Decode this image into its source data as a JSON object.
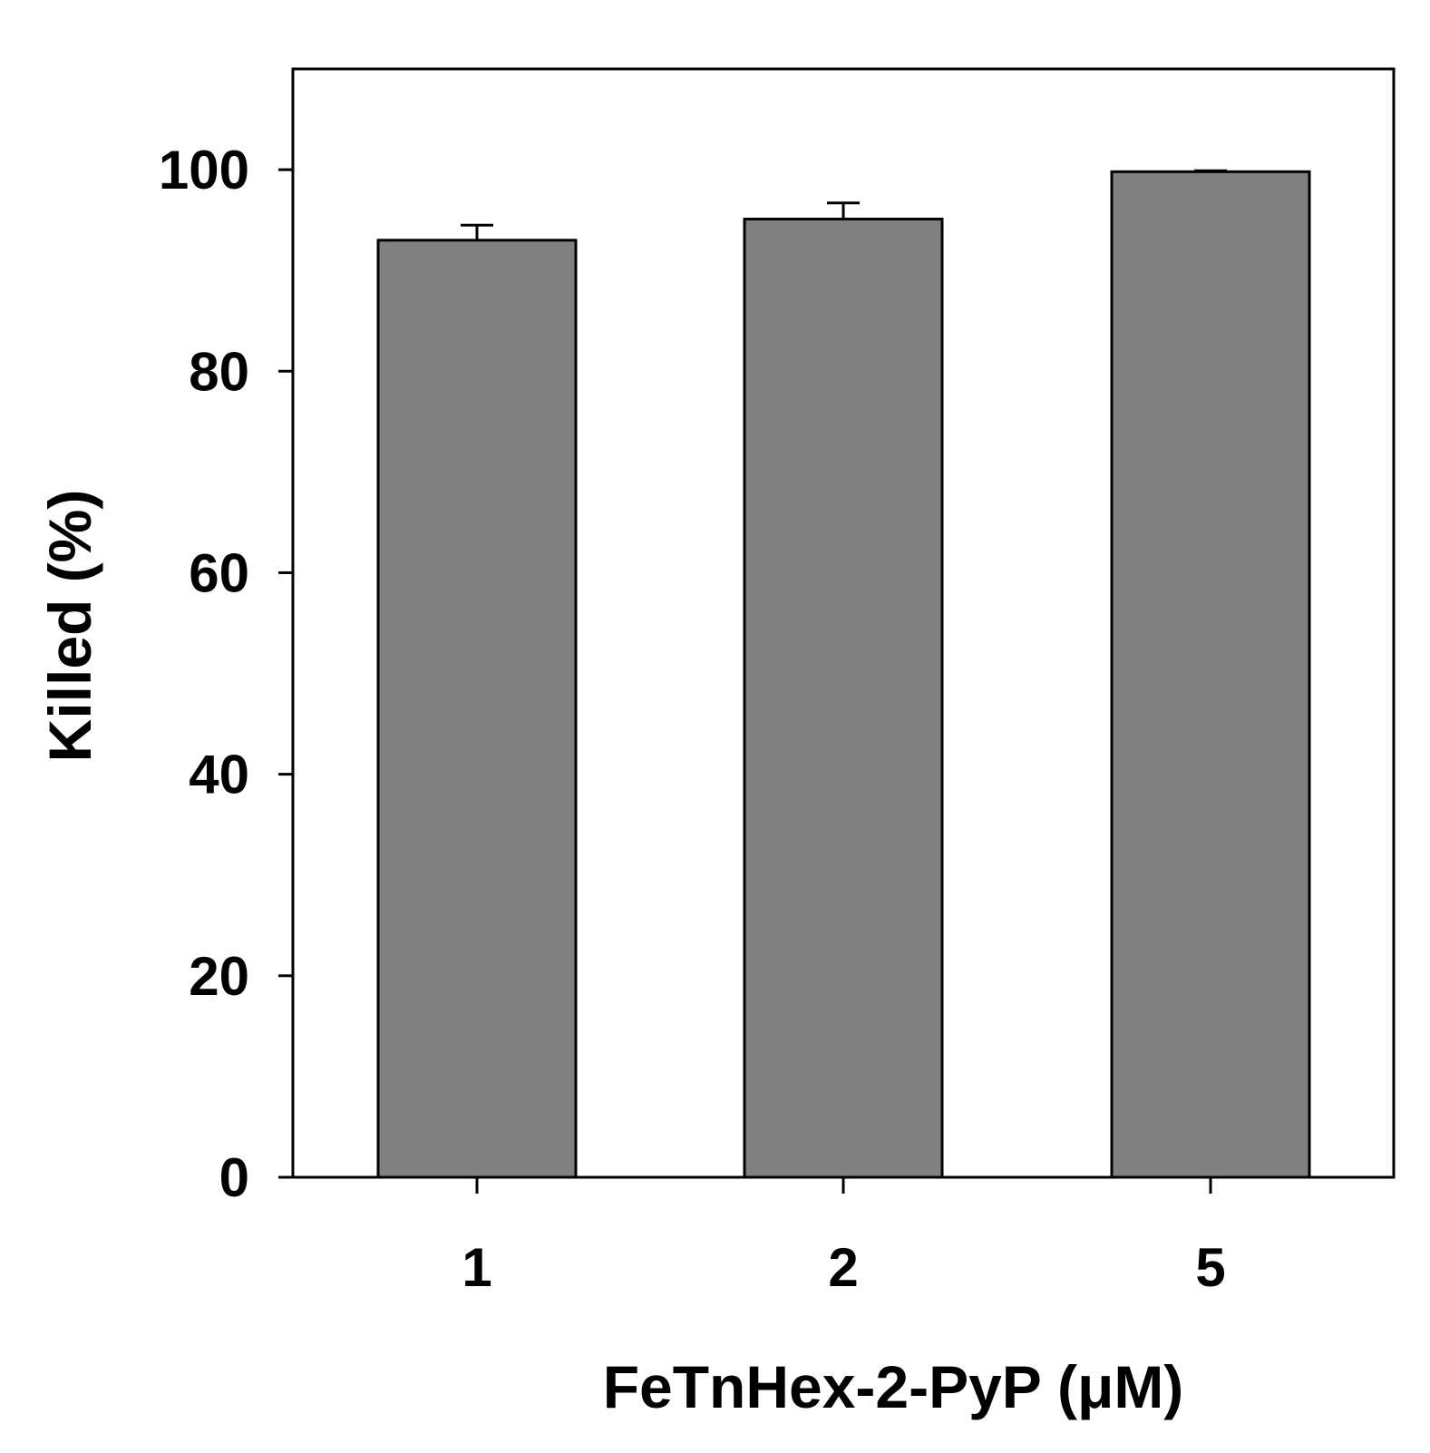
{
  "chart_data": {
    "type": "bar",
    "categories": [
      "1",
      "2",
      "5"
    ],
    "values": [
      93.0,
      95.1,
      99.8
    ],
    "error_bars": [
      1.5,
      1.6,
      0.1
    ],
    "xlabel": "FeTnHex-2-PyP (μM)",
    "ylabel": "Killed (%)",
    "ylim": [
      0,
      110
    ],
    "yticks": [
      0,
      20,
      40,
      60,
      80,
      100
    ],
    "ytick_labels": [
      "0",
      "20",
      "40",
      "60",
      "80",
      "100"
    ],
    "grid": false,
    "legend": "none",
    "bar_color": "#808080"
  }
}
